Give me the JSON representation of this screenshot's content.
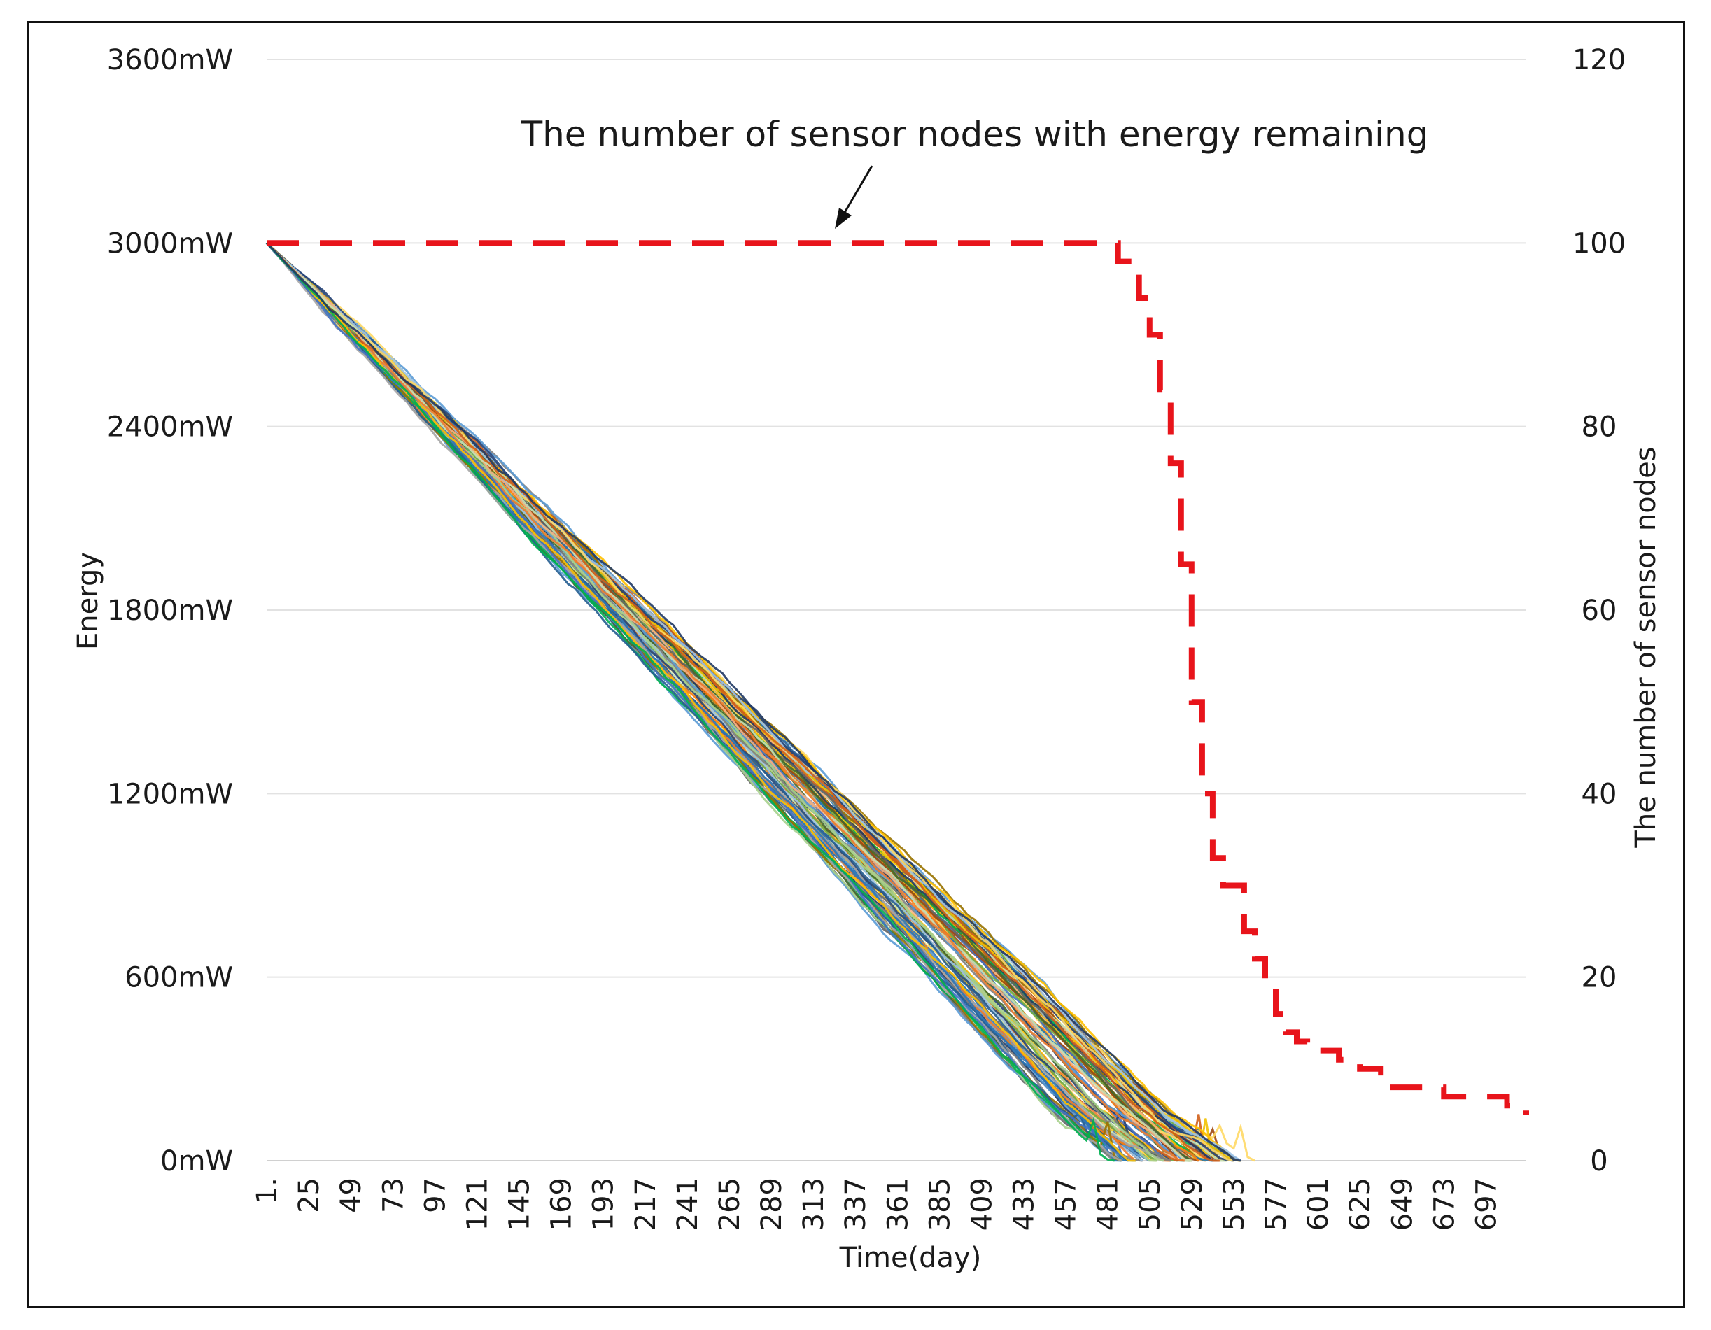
{
  "chart_data": {
    "type": "line",
    "title": "",
    "annotation": "The number of sensor nodes with energy remaining",
    "xlabel": "Time(day)",
    "ylabel": "Energy",
    "y2label": "The number of sensor nodes",
    "x_tick_labels": [
      "1.",
      "25",
      "49",
      "73",
      "97",
      "121",
      "145",
      "169",
      "193",
      "217",
      "241",
      "265",
      "289",
      "313",
      "337",
      "361",
      "385",
      "409",
      "433",
      "457",
      "481",
      "505",
      "529",
      "553",
      "577",
      "601",
      "625",
      "649",
      "673",
      "697"
    ],
    "xlim": [
      1,
      720
    ],
    "ylim": [
      0,
      3600
    ],
    "y_tick_values": [
      0,
      600,
      1200,
      1800,
      2400,
      3000,
      3600
    ],
    "y_tick_labels": [
      "0mW",
      "600mW",
      "1200mW",
      "1800mW",
      "2400mW",
      "3000mW",
      "3600mW"
    ],
    "y2lim": [
      0,
      120
    ],
    "y2_tick_values": [
      0,
      20,
      40,
      60,
      80,
      100,
      120
    ],
    "y2_tick_labels": [
      "0",
      "20",
      "40",
      "60",
      "80",
      "100",
      "120"
    ],
    "grid": true,
    "series_note": "100 sensor node energy curves (left axis) plus the remaining-node count (right axis, red dashed)",
    "energy_series_summary": {
      "count": 100,
      "start_value": 3000,
      "depletion_day_min": 481,
      "depletion_day_max": 720,
      "mid_point": {
        "day": 289,
        "value_range": [
          1350,
          1650
        ]
      }
    },
    "sensor_count_series": {
      "name": "The number of sensor nodes with energy remaining",
      "color": "#e8141b",
      "axis": "right",
      "x": [
        1,
        481,
        487,
        493,
        499,
        505,
        511,
        517,
        523,
        529,
        535,
        541,
        547,
        553,
        559,
        565,
        571,
        577,
        583,
        589,
        595,
        601,
        613,
        625,
        637,
        649,
        661,
        673,
        685,
        697,
        709,
        720
      ],
      "values": [
        100,
        100,
        98,
        97,
        94,
        90,
        84,
        76,
        65,
        50,
        40,
        33,
        30,
        30,
        25,
        22,
        19,
        16,
        14,
        13,
        12,
        12,
        11,
        10,
        8,
        8,
        8,
        7,
        7,
        7,
        6,
        5
      ]
    },
    "palette": [
      "#1f77b4",
      "#ff7f0e",
      "#7f7f7f",
      "#f2c200",
      "#5b9bd5",
      "#70ad47",
      "#264478",
      "#9e480e",
      "#636363",
      "#997300",
      "#43682b",
      "#a9d18e",
      "#9dc3e6",
      "#f4b183",
      "#ffd966",
      "#c5e0b4",
      "#255e91",
      "#d05f1a",
      "#2e75b6",
      "#ed7d31",
      "#a5a5a5",
      "#4472c4",
      "#ffc000",
      "#00b050",
      "#203864"
    ]
  }
}
